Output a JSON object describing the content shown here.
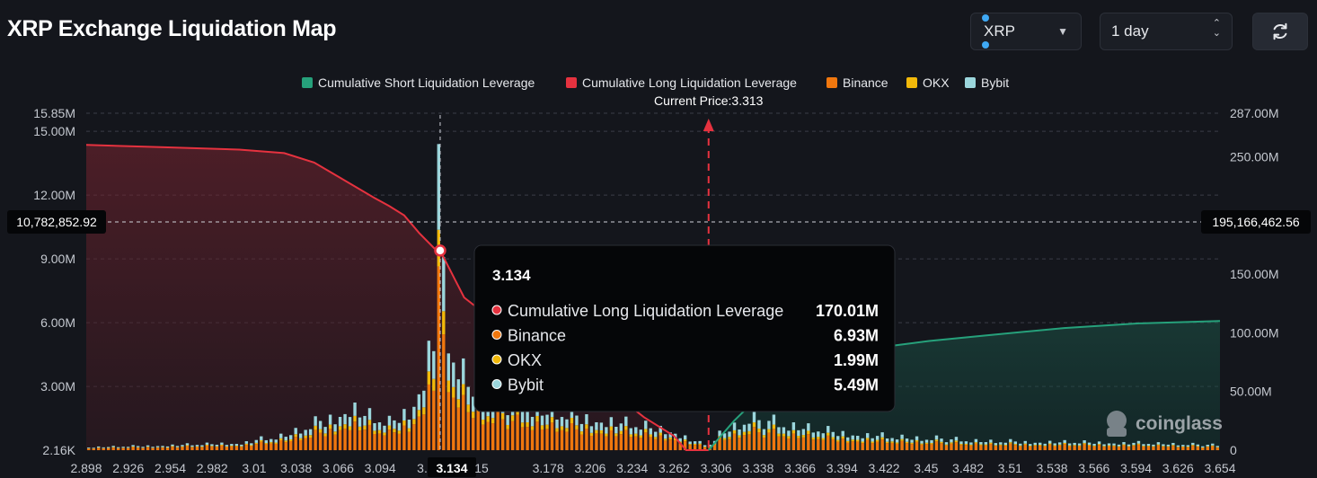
{
  "header": {
    "title": "XRP Exchange Liquidation Map",
    "coin_select": {
      "value": "XRP"
    },
    "range_select": {
      "value": "1 day"
    },
    "refresh_icon": "refresh-icon"
  },
  "chart_data": {
    "type": "bar",
    "legend": [
      {
        "name": "Cumulative Short Liquidation Leverage",
        "color": "#26a17b"
      },
      {
        "name": "Cumulative Long Liquidation Leverage",
        "color": "#e5323f"
      },
      {
        "name": "Binance",
        "color": "#f0770e"
      },
      {
        "name": "OKX",
        "color": "#f2b90a"
      },
      {
        "name": "Bybit",
        "color": "#9bd6dc"
      }
    ],
    "legend_position": "top-center",
    "current_price_label": "Current Price:3.313",
    "current_price": 3.313,
    "x_range": [
      2.898,
      3.654
    ],
    "x_tick_labels": [
      "2.898",
      "2.926",
      "2.954",
      "2.982",
      "3.01",
      "3.038",
      "3.066",
      "3.094",
      "3.",
      "3.134",
      "15",
      "3.178",
      "3.206",
      "3.234",
      "3.262",
      "3.306",
      "3.338",
      "3.366",
      "3.394",
      "3.422",
      "3.45",
      "3.482",
      "3.51",
      "3.538",
      "3.566",
      "3.594",
      "3.626",
      "3.654"
    ],
    "y_left": {
      "min": 2160,
      "max": 15850000,
      "tick_labels": [
        "2.16K",
        "3.00M",
        "6.00M",
        "9.00M",
        "12.00M",
        "15.00M",
        "15.85M"
      ],
      "tick_values": [
        2160,
        3000000,
        6000000,
        9000000,
        12000000,
        15000000,
        15850000
      ]
    },
    "y_right": {
      "min": 0,
      "max": 287000000,
      "tick_labels": [
        "0",
        "50.00M",
        "100.00M",
        "150.00M",
        "200.00M",
        "250.00M",
        "287.00M"
      ],
      "tick_values": [
        0,
        50000000,
        100000000,
        150000000,
        200000000,
        250000000,
        287000000
      ]
    },
    "grid": true,
    "crosshair": {
      "left_label": "10,782,852.92",
      "right_label": "195,166,462.56",
      "x": 3.134
    },
    "tooltip": {
      "title": "3.134",
      "rows": [
        {
          "name": "Cumulative Long Liquidation Leverage",
          "value": "170.01M",
          "color": "#e5323f"
        },
        {
          "name": "Binance",
          "value": "6.93M",
          "color": "#f0770e"
        },
        {
          "name": "OKX",
          "value": "1.99M",
          "color": "#f2b90a"
        },
        {
          "name": "Bybit",
          "value": "5.49M",
          "color": "#9bd6dc"
        }
      ]
    },
    "long_curve": [
      [
        2.898,
        260
      ],
      [
        2.95,
        258
      ],
      [
        3.0,
        256
      ],
      [
        3.03,
        253
      ],
      [
        3.05,
        245
      ],
      [
        3.07,
        230
      ],
      [
        3.09,
        215
      ],
      [
        3.1,
        208
      ],
      [
        3.11,
        200
      ],
      [
        3.12,
        185
      ],
      [
        3.13,
        172
      ],
      [
        3.134,
        170
      ],
      [
        3.14,
        155
      ],
      [
        3.15,
        130
      ],
      [
        3.17,
        110
      ],
      [
        3.2,
        90
      ],
      [
        3.23,
        72
      ],
      [
        3.25,
        48
      ],
      [
        3.27,
        28
      ],
      [
        3.29,
        12
      ],
      [
        3.298,
        0
      ],
      [
        3.313,
        0
      ]
    ],
    "short_curve": [
      [
        3.313,
        0
      ],
      [
        3.33,
        25
      ],
      [
        3.35,
        50
      ],
      [
        3.37,
        65
      ],
      [
        3.4,
        78
      ],
      [
        3.43,
        88
      ],
      [
        3.46,
        93
      ],
      [
        3.5,
        98
      ],
      [
        3.55,
        104
      ],
      [
        3.6,
        108
      ],
      [
        3.654,
        110
      ]
    ],
    "bar_profile": [
      [
        2.898,
        0.18
      ],
      [
        2.95,
        0.3
      ],
      [
        3.0,
        0.45
      ],
      [
        3.03,
        0.9
      ],
      [
        3.05,
        1.6
      ],
      [
        3.066,
        2.3
      ],
      [
        3.075,
        2.7
      ],
      [
        3.085,
        2.2
      ],
      [
        3.1,
        1.7
      ],
      [
        3.115,
        2.6
      ],
      [
        3.122,
        4.5
      ],
      [
        3.128,
        6.8
      ],
      [
        3.132,
        9.2
      ],
      [
        3.134,
        14.4
      ],
      [
        3.137,
        8.0
      ],
      [
        3.142,
        6.2
      ],
      [
        3.15,
        4.6
      ],
      [
        3.16,
        3.4
      ],
      [
        3.2,
        2.5
      ],
      [
        3.25,
        1.8
      ],
      [
        3.29,
        1.2
      ],
      [
        3.305,
        0.5
      ],
      [
        3.313,
        0.3
      ],
      [
        3.32,
        1.0
      ],
      [
        3.34,
        1.9
      ],
      [
        3.37,
        1.5
      ],
      [
        3.4,
        1.1
      ],
      [
        3.44,
        0.8
      ],
      [
        3.5,
        0.55
      ],
      [
        3.56,
        0.5
      ],
      [
        3.6,
        0.45
      ],
      [
        3.654,
        0.3
      ]
    ],
    "bar_mix": {
      "binance": 0.6,
      "okx": 0.12,
      "bybit": 0.28
    },
    "watermark": "coinglass"
  }
}
